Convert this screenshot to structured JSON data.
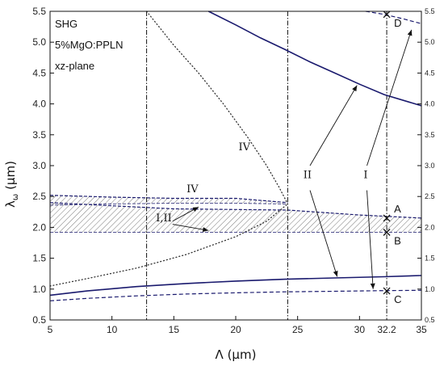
{
  "chart_data": {
    "type": "line",
    "xlabel": "Λ (μm)",
    "ylabel_main": "λ",
    "ylabel_sub": "ω",
    "ylabel_unit": " (μm)",
    "xlim": [
      5,
      35
    ],
    "ylim": [
      0.5,
      5.5
    ],
    "x_ticks": [
      5,
      10,
      15,
      20,
      25,
      30,
      35
    ],
    "x_tick_labels": [
      "5",
      "10",
      "15",
      "20",
      "25",
      "30",
      "35"
    ],
    "y_ticks": [
      0.5,
      1.0,
      1.5,
      2.0,
      2.5,
      3.0,
      3.5,
      4.0,
      4.5,
      5.0,
      5.5
    ],
    "y_tick_labels": [
      "0.5",
      "1.0",
      "1.5",
      "2.0",
      "2.5",
      "3.0",
      "3.5",
      "4.0",
      "4.5",
      "5.0",
      "5.5"
    ],
    "grid": false,
    "text_labels": [
      "SHG",
      "5%MgO:PPLN",
      "xz-plane"
    ],
    "vertical_markers": [
      {
        "x": 12.8,
        "label": ""
      },
      {
        "x": 24.2,
        "label": ""
      },
      {
        "x": 32.2,
        "label": "32.2"
      }
    ],
    "series": [
      {
        "style": "solid",
        "color": "#1a1a6e",
        "points": [
          [
            5,
            0.9
          ],
          [
            8,
            0.97
          ],
          [
            12,
            1.04
          ],
          [
            16,
            1.09
          ],
          [
            20,
            1.13
          ],
          [
            24,
            1.16
          ],
          [
            28,
            1.18
          ],
          [
            32,
            1.2
          ],
          [
            35,
            1.22
          ]
        ]
      },
      {
        "style": "dashed",
        "color": "#1a1a6e",
        "points": [
          [
            5,
            0.81
          ],
          [
            8,
            0.85
          ],
          [
            12,
            0.89
          ],
          [
            16,
            0.92
          ],
          [
            20,
            0.94
          ],
          [
            24,
            0.955
          ],
          [
            28,
            0.965
          ],
          [
            32,
            0.975
          ],
          [
            35,
            0.98
          ]
        ]
      },
      {
        "style": "solid",
        "color": "#1a1a6e",
        "points": [
          [
            17.8,
            5.5
          ],
          [
            20,
            5.28
          ],
          [
            22,
            5.07
          ],
          [
            24,
            4.88
          ],
          [
            26,
            4.68
          ],
          [
            28,
            4.5
          ],
          [
            30,
            4.32
          ],
          [
            32,
            4.15
          ],
          [
            35,
            3.97
          ]
        ]
      },
      {
        "style": "dashed",
        "color": "#1a1a6e",
        "points": [
          [
            30.5,
            5.5
          ],
          [
            32,
            5.45
          ],
          [
            33.5,
            5.38
          ],
          [
            35,
            5.3
          ]
        ]
      },
      {
        "style": "dotted",
        "color": "#333333",
        "points": [
          [
            5,
            1.05
          ],
          [
            8,
            1.17
          ],
          [
            12,
            1.34
          ],
          [
            16,
            1.56
          ],
          [
            20,
            1.85
          ],
          [
            22.5,
            2.1
          ],
          [
            24.2,
            2.38
          ]
        ]
      },
      {
        "style": "dotted",
        "color": "#333333",
        "points": [
          [
            12.8,
            5.5
          ],
          [
            15,
            4.95
          ],
          [
            17,
            4.5
          ],
          [
            19,
            4.0
          ],
          [
            21,
            3.45
          ],
          [
            22.5,
            3.0
          ],
          [
            23.5,
            2.65
          ],
          [
            24.2,
            2.38
          ]
        ]
      }
    ],
    "bands": [
      {
        "label": "IV",
        "upper": [
          [
            5,
            2.52
          ],
          [
            10,
            2.49
          ],
          [
            15,
            2.47
          ],
          [
            20,
            2.47
          ],
          [
            24.2,
            2.4
          ]
        ],
        "lower": [
          [
            5,
            2.36
          ],
          [
            10,
            2.38
          ],
          [
            15,
            2.39
          ],
          [
            20,
            2.39
          ],
          [
            24.2,
            2.38
          ]
        ]
      },
      {
        "label": "I,II",
        "upper": [
          [
            5,
            2.4
          ],
          [
            15,
            2.3
          ],
          [
            24.2,
            2.28
          ],
          [
            30,
            2.2
          ],
          [
            35,
            2.15
          ]
        ],
        "lower": [
          [
            5,
            1.92
          ],
          [
            35,
            1.92
          ]
        ]
      }
    ],
    "points": [
      {
        "label": "A",
        "x": 32.2,
        "y": 2.15
      },
      {
        "label": "B",
        "x": 32.2,
        "y": 1.92
      },
      {
        "label": "C",
        "x": 32.2,
        "y": 0.97
      },
      {
        "label": "D",
        "x": 32.2,
        "y": 5.45
      }
    ],
    "annotations": [
      {
        "label": "IV",
        "x": 20.7,
        "y": 3.25
      },
      {
        "label": "IV",
        "x": 16.5,
        "y": 2.57
      },
      {
        "label": "I,II",
        "x": 14.2,
        "y": 2.1
      },
      {
        "label": "II",
        "x": 25.8,
        "y": 2.8
      },
      {
        "label": "I",
        "x": 30.5,
        "y": 2.8
      }
    ],
    "arrows": [
      {
        "from": [
          14.9,
          2.1
        ],
        "to": [
          17.0,
          2.33
        ]
      },
      {
        "from": [
          14.9,
          2.05
        ],
        "to": [
          17.8,
          1.95
        ]
      },
      {
        "from": [
          26.0,
          3.0
        ],
        "to": [
          29.8,
          4.3
        ]
      },
      {
        "from": [
          26.0,
          2.6
        ],
        "to": [
          28.2,
          1.2
        ]
      },
      {
        "from": [
          30.6,
          3.0
        ],
        "to": [
          34.2,
          5.2
        ]
      },
      {
        "from": [
          30.6,
          2.6
        ],
        "to": [
          31.1,
          1.0
        ]
      }
    ]
  }
}
